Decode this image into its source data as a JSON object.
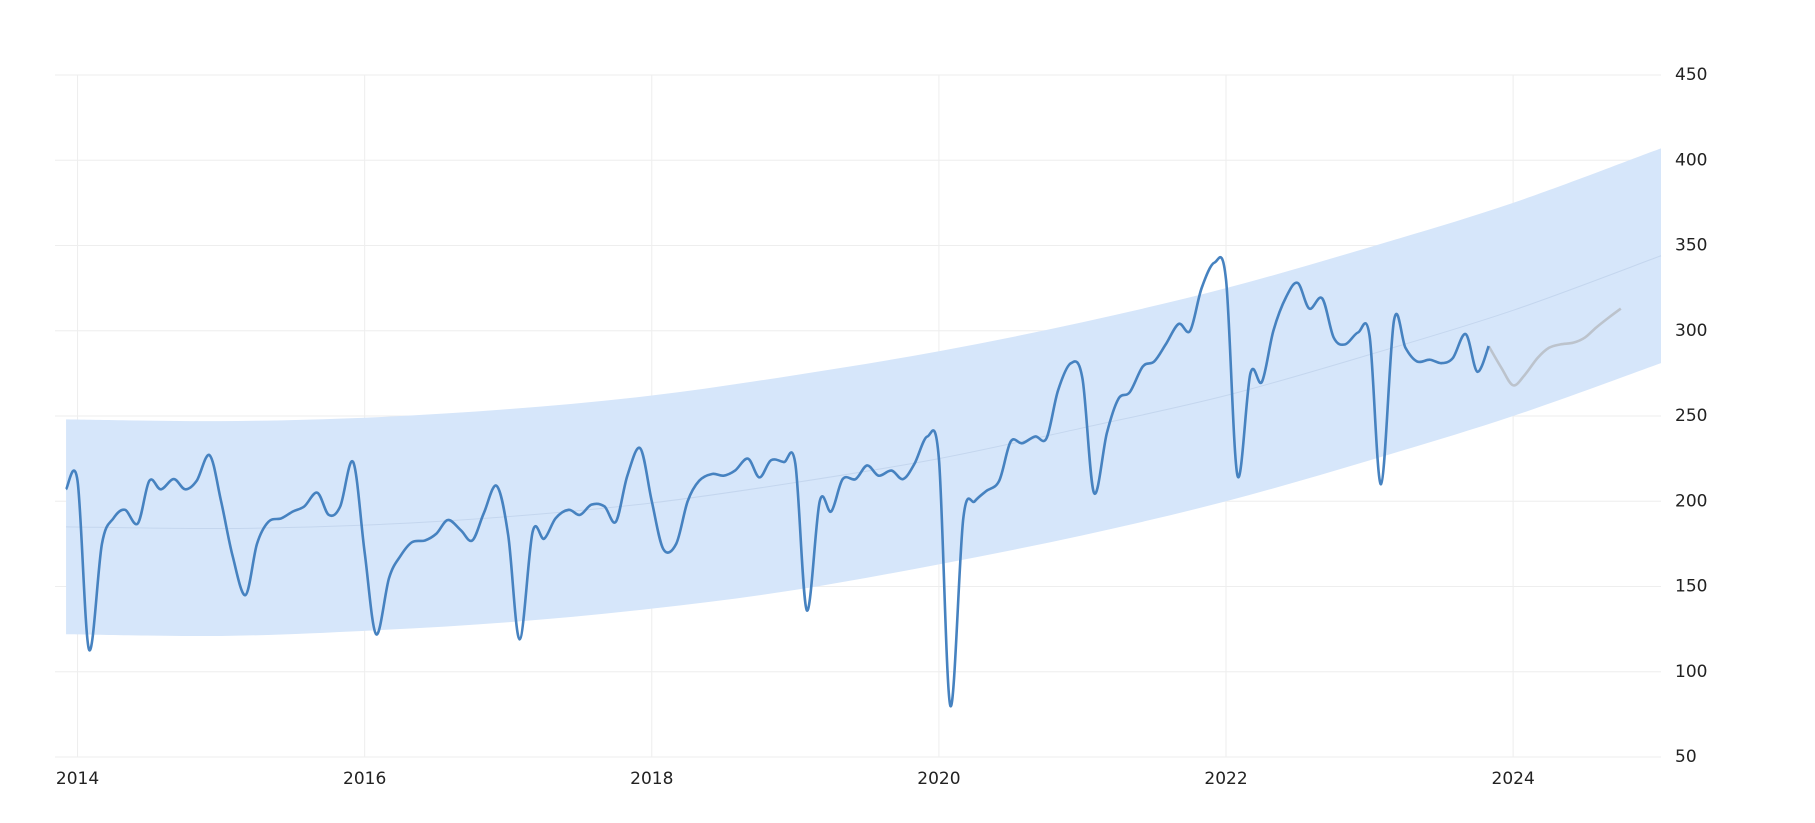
{
  "chart_data": {
    "type": "line",
    "xlim": [
      2013.85,
      2025.03
    ],
    "xticks": [
      2014,
      2016,
      2018,
      2020,
      2022,
      2024
    ],
    "ylim": [
      50,
      450
    ],
    "yticks": [
      50,
      100,
      150,
      200,
      250,
      300,
      350,
      400,
      450
    ],
    "grid": true,
    "band": {
      "color": "#d6e6fa",
      "trend_color": "#c4d6ee",
      "x": [
        2013.92,
        2015,
        2016,
        2017,
        2018,
        2019,
        2020,
        2021,
        2022,
        2023,
        2024,
        2025.03
      ],
      "upper": [
        248,
        247,
        249,
        254,
        262,
        274,
        288,
        305,
        325,
        349,
        375,
        407
      ],
      "lower": [
        122,
        121,
        124,
        129,
        137,
        148,
        163,
        180,
        200,
        224,
        250,
        281
      ],
      "trend": [
        185,
        184,
        186,
        191,
        199,
        211,
        225,
        243,
        262,
        286,
        312,
        344
      ]
    },
    "series": [
      {
        "color": "#4682c0",
        "x": [
          2013.92,
          2014,
          2014.08,
          2014.17,
          2014.25,
          2014.33,
          2014.42,
          2014.5,
          2014.58,
          2014.67,
          2014.75,
          2014.83,
          2014.92,
          2015,
          2015.08,
          2015.17,
          2015.25,
          2015.33,
          2015.42,
          2015.5,
          2015.58,
          2015.67,
          2015.75,
          2015.83,
          2015.92,
          2016,
          2016.08,
          2016.17,
          2016.25,
          2016.33,
          2016.42,
          2016.5,
          2016.58,
          2016.67,
          2016.75,
          2016.83,
          2016.92,
          2017,
          2017.08,
          2017.17,
          2017.25,
          2017.33,
          2017.42,
          2017.5,
          2017.58,
          2017.67,
          2017.75,
          2017.83,
          2017.92,
          2018,
          2018.08,
          2018.17,
          2018.25,
          2018.33,
          2018.42,
          2018.5,
          2018.58,
          2018.67,
          2018.75,
          2018.83,
          2018.92,
          2019,
          2019.08,
          2019.17,
          2019.25,
          2019.33,
          2019.42,
          2019.5,
          2019.58,
          2019.67,
          2019.75,
          2019.83,
          2019.92,
          2020,
          2020.08,
          2020.17,
          2020.25,
          2020.33,
          2020.42,
          2020.5,
          2020.58,
          2020.67,
          2020.75,
          2020.83,
          2020.92,
          2021,
          2021.08,
          2021.17,
          2021.25,
          2021.33,
          2021.42,
          2021.5,
          2021.58,
          2021.67,
          2021.75,
          2021.83,
          2021.92,
          2022,
          2022.08,
          2022.17,
          2022.25,
          2022.33,
          2022.42,
          2022.5,
          2022.58,
          2022.67,
          2022.75,
          2022.83,
          2022.92,
          2023,
          2023.08,
          2023.17,
          2023.25,
          2023.33,
          2023.42,
          2023.5,
          2023.58,
          2023.67,
          2023.75,
          2023.83
        ],
        "values": [
          207,
          212,
          113,
          175,
          190,
          195,
          187,
          212,
          207,
          213,
          207,
          212,
          227,
          200,
          168,
          145,
          175,
          188,
          190,
          194,
          197,
          205,
          192,
          197,
          223,
          170,
          122,
          155,
          168,
          176,
          177,
          181,
          189,
          183,
          177,
          193,
          209,
          180,
          119,
          182,
          178,
          190,
          195,
          192,
          198,
          197,
          188,
          215,
          231,
          200,
          172,
          175,
          200,
          212,
          216,
          215,
          218,
          225,
          214,
          224,
          223,
          222,
          136,
          200,
          194,
          213,
          213,
          221,
          215,
          218,
          213,
          222,
          238,
          225,
          80,
          190,
          200,
          206,
          212,
          235,
          234,
          238,
          237,
          265,
          281,
          272,
          205,
          240,
          260,
          264,
          279,
          282,
          292,
          304,
          300,
          325,
          340,
          330,
          215,
          275,
          270,
          300,
          320,
          328,
          313,
          319,
          296,
          292,
          299,
          297,
          210,
          306,
          290,
          282,
          283,
          281,
          284,
          298,
          276,
          291
        ]
      },
      {
        "color": "#bcc3cc",
        "x": [
          2023.83,
          2023.92,
          2024,
          2024.08,
          2024.17,
          2024.25,
          2024.33,
          2024.42,
          2024.5,
          2024.58,
          2024.67,
          2024.75
        ],
        "values": [
          291,
          278,
          268,
          274,
          284,
          290,
          292,
          293,
          296,
          302,
          308,
          313
        ]
      }
    ]
  }
}
